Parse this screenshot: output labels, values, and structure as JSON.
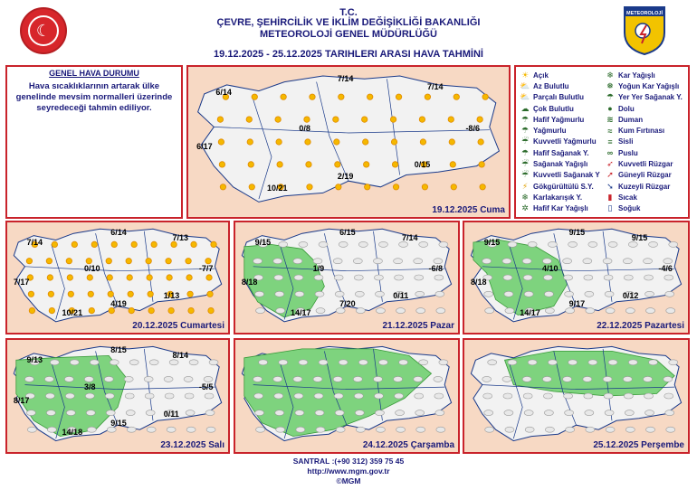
{
  "header": {
    "line1": "T.C.",
    "line2": "ÇEVRE, ŞEHİRCİLİK VE İKLİM DEĞİŞİKLİĞİ BAKANLIĞI",
    "line3": "METEOROLOJİ GENEL MÜDÜRLÜĞÜ",
    "period": "19.12.2025 - 25.12.2025 TARIHLERI ARASI HAVA TAHMİNİ",
    "logo_right_text": "METEOROLOJİ"
  },
  "general": {
    "title": "GENEL HAVA DURUMU",
    "text": "Hava sıcaklıklarının artarak ülke genelinde mevsim normalleri üzerinde seyredeceği tahmin ediliyor."
  },
  "maps": [
    {
      "date": "19.12.2025 Cuma",
      "rain_level": 0,
      "temps": [
        "6/14",
        "7/14",
        "7/14",
        "0/8",
        "-8/6",
        "6/17",
        "0/15",
        "2/19",
        "10/21"
      ]
    },
    {
      "date": "20.12.2025 Cumartesi",
      "rain_level": 0,
      "temps": [
        "7/14",
        "6/14",
        "7/13",
        "0/10",
        "-7/7",
        "7/17",
        "1/13",
        "4/19",
        "10/21"
      ]
    },
    {
      "date": "21.12.2025 Pazar",
      "rain_level": 1,
      "temps": [
        "9/15",
        "6/15",
        "7/14",
        "1/9",
        "-6/8",
        "8/18",
        "0/11",
        "7/20",
        "14/17"
      ]
    },
    {
      "date": "22.12.2025 Pazartesi",
      "rain_level": 2,
      "temps": [
        "9/15",
        "9/15",
        "9/15",
        "4/10",
        "-4/6",
        "8/18",
        "0/12",
        "9/17",
        "14/17"
      ]
    },
    {
      "date": "23.12.2025 Salı",
      "rain_level": 3,
      "temps": [
        "9/13",
        "8/15",
        "8/14",
        "3/8",
        "-5/5",
        "8/17",
        "0/11",
        "9/15",
        "14/18"
      ]
    },
    {
      "date": "24.12.2025 Çarşamba",
      "rain_level": 4,
      "temps": []
    },
    {
      "date": "25.12.2025 Perşembe",
      "rain_level": 5,
      "temps": []
    }
  ],
  "legend": {
    "col1": [
      {
        "label": "Açık",
        "icon": "sun-icon"
      },
      {
        "label": "Az Bulutlu",
        "icon": "sun-cloud-icon"
      },
      {
        "label": "Parçalı Bulutlu",
        "icon": "partly-cloudy-icon"
      },
      {
        "label": "Çok Bulutlu",
        "icon": "cloud-icon"
      },
      {
        "label": "Hafif Yağmurlu",
        "icon": "light-rain-icon"
      },
      {
        "label": "Yağmurlu",
        "icon": "rain-icon"
      },
      {
        "label": "Kuvvetli Yağmurlu",
        "icon": "heavy-rain-icon"
      },
      {
        "label": "Hafif Sağanak Y.",
        "icon": "light-shower-icon"
      },
      {
        "label": "Sağanak Yağışlı",
        "icon": "shower-icon"
      },
      {
        "label": "Kuvvetli Sağanak Y",
        "icon": "heavy-shower-icon"
      },
      {
        "label": "Gökgürültülü S.Y.",
        "icon": "thunder-icon"
      },
      {
        "label": "Karlakarışık Y.",
        "icon": "sleet-icon"
      },
      {
        "label": "Hafif Kar Yağışlı",
        "icon": "light-snow-icon"
      }
    ],
    "col2": [
      {
        "label": "Kar Yağışlı",
        "icon": "snow-icon"
      },
      {
        "label": "Yoğun Kar Yağışlı",
        "icon": "heavy-snow-icon"
      },
      {
        "label": "Yer Yer Sağanak Y.",
        "icon": "scattered-shower-icon"
      },
      {
        "label": "Dolu",
        "icon": "hail-icon"
      },
      {
        "label": "Duman",
        "icon": "smoke-icon"
      },
      {
        "label": "Kum Fırtınası",
        "icon": "sandstorm-icon"
      },
      {
        "label": "Sisli",
        "icon": "fog-icon"
      },
      {
        "label": "Puslu",
        "icon": "haze-icon"
      },
      {
        "label": "Kuvvetli Rüzgar",
        "icon": "strong-wind-icon"
      },
      {
        "label": "Güneyli Rüzgar",
        "icon": "south-wind-icon"
      },
      {
        "label": "Kuzeyli Rüzgar",
        "icon": "north-wind-icon"
      },
      {
        "label": "Sıcak",
        "icon": "hot-icon"
      },
      {
        "label": "Soğuk",
        "icon": "cold-icon"
      }
    ]
  },
  "footer": {
    "phone": "SANTRAL :(+90 312) 359 75 45",
    "url": "http://www.mgm.gov.tr",
    "copyright": "©MGM"
  },
  "colors": {
    "border": "#c9232b",
    "land": "#f7d9c4",
    "rain": "#7ed37e",
    "text": "#1a1a7a"
  }
}
